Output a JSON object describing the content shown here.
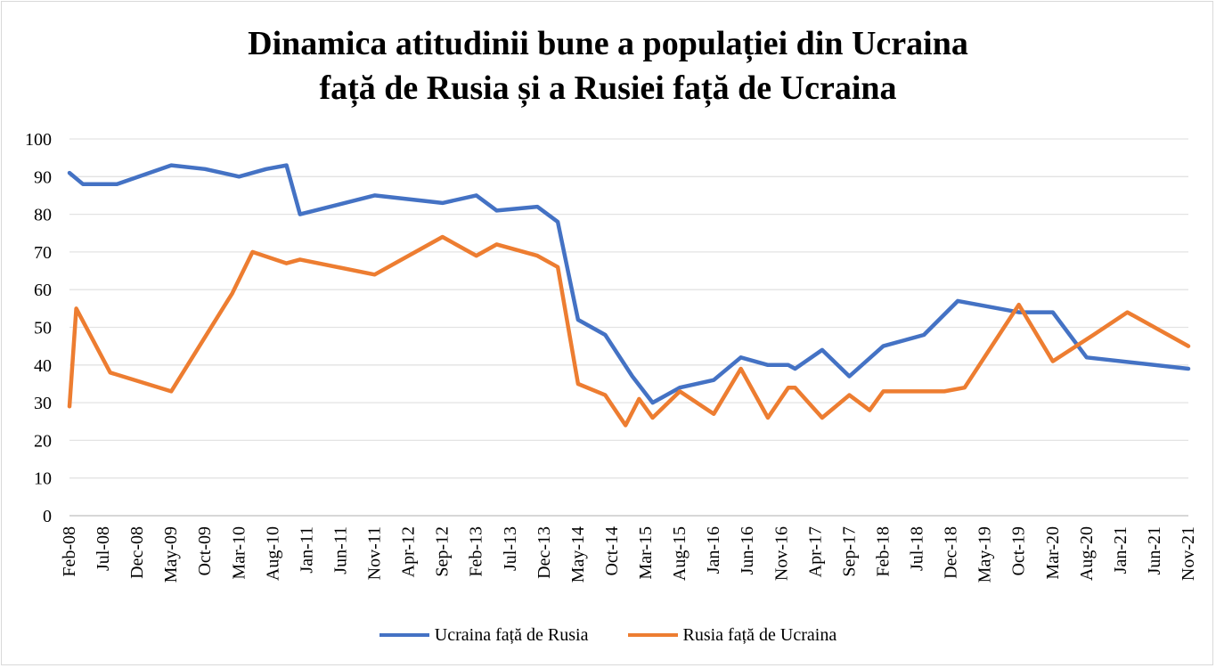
{
  "chart_data": {
    "type": "line",
    "title_lines": [
      "Dinamica atitudinii bune a populației din Ucraina",
      "față de Rusia și a Rusiei față de Ucraina"
    ],
    "xlabel": "",
    "ylabel": "",
    "ylim": [
      0,
      100
    ],
    "y_ticks": [
      "0",
      "10",
      "20",
      "30",
      "40",
      "50",
      "60",
      "70",
      "80",
      "90",
      "100"
    ],
    "x_tick_labels": [
      "Feb-08",
      "Jul-08",
      "Dec-08",
      "May-09",
      "Oct-09",
      "Mar-10",
      "Aug-10",
      "Jan-11",
      "Jun-11",
      "Nov-11",
      "Apr-12",
      "Sep-12",
      "Feb-13",
      "Jul-13",
      "Dec-13",
      "May-14",
      "Oct-14",
      "Mar-15",
      "Aug-15",
      "Jan-16",
      "Jun-16",
      "Nov-16",
      "Apr-17",
      "Sep-17",
      "Feb-18",
      "Jul-18",
      "Dec-18",
      "May-19",
      "Oct-19",
      "Mar-20",
      "Aug-20",
      "Jan-21",
      "Jun-21",
      "Nov-21"
    ],
    "grid": true,
    "legend_position": "bottom",
    "series": [
      {
        "name": "Ucraina față de Rusia",
        "color": "#4472C4",
        "points": [
          [
            "2008-02",
            91
          ],
          [
            "2008-04",
            88
          ],
          [
            "2008-09",
            88
          ],
          [
            "2009-05",
            93
          ],
          [
            "2009-10",
            92
          ],
          [
            "2010-03",
            90
          ],
          [
            "2010-07",
            92
          ],
          [
            "2010-10",
            93
          ],
          [
            "2010-12",
            80
          ],
          [
            "2011-11",
            85
          ],
          [
            "2012-09",
            83
          ],
          [
            "2013-02",
            85
          ],
          [
            "2013-05",
            81
          ],
          [
            "2013-11",
            82
          ],
          [
            "2014-02",
            78
          ],
          [
            "2014-05",
            52
          ],
          [
            "2014-09",
            48
          ],
          [
            "2015-01",
            37
          ],
          [
            "2015-04",
            30
          ],
          [
            "2015-08",
            34
          ],
          [
            "2016-01",
            36
          ],
          [
            "2016-05",
            42
          ],
          [
            "2016-09",
            40
          ],
          [
            "2016-12",
            40
          ],
          [
            "2017-01",
            39
          ],
          [
            "2017-05",
            44
          ],
          [
            "2017-09",
            37
          ],
          [
            "2018-02",
            45
          ],
          [
            "2018-08",
            48
          ],
          [
            "2019-01",
            57
          ],
          [
            "2019-10",
            54
          ],
          [
            "2020-03",
            54
          ],
          [
            "2020-08",
            42
          ],
          [
            "2021-11",
            39
          ]
        ]
      },
      {
        "name": "Rusia față de Ucraina",
        "color": "#ED7D31",
        "points": [
          [
            "2008-02",
            29
          ],
          [
            "2008-03",
            55
          ],
          [
            "2008-08",
            38
          ],
          [
            "2009-05",
            33
          ],
          [
            "2010-02",
            59
          ],
          [
            "2010-05",
            70
          ],
          [
            "2010-10",
            67
          ],
          [
            "2010-12",
            68
          ],
          [
            "2011-11",
            64
          ],
          [
            "2012-09",
            74
          ],
          [
            "2013-02",
            69
          ],
          [
            "2013-05",
            72
          ],
          [
            "2013-11",
            69
          ],
          [
            "2014-02",
            66
          ],
          [
            "2014-05",
            35
          ],
          [
            "2014-09",
            32
          ],
          [
            "2014-12",
            24
          ],
          [
            "2015-02",
            31
          ],
          [
            "2015-04",
            26
          ],
          [
            "2015-08",
            33
          ],
          [
            "2016-01",
            27
          ],
          [
            "2016-05",
            39
          ],
          [
            "2016-09",
            26
          ],
          [
            "2016-12",
            34
          ],
          [
            "2017-01",
            34
          ],
          [
            "2017-05",
            26
          ],
          [
            "2017-09",
            32
          ],
          [
            "2017-12",
            28
          ],
          [
            "2018-02",
            33
          ],
          [
            "2018-11",
            33
          ],
          [
            "2019-02",
            34
          ],
          [
            "2019-10",
            56
          ],
          [
            "2020-03",
            41
          ],
          [
            "2020-09",
            48
          ],
          [
            "2021-02",
            54
          ],
          [
            "2021-11",
            45
          ]
        ]
      }
    ]
  }
}
